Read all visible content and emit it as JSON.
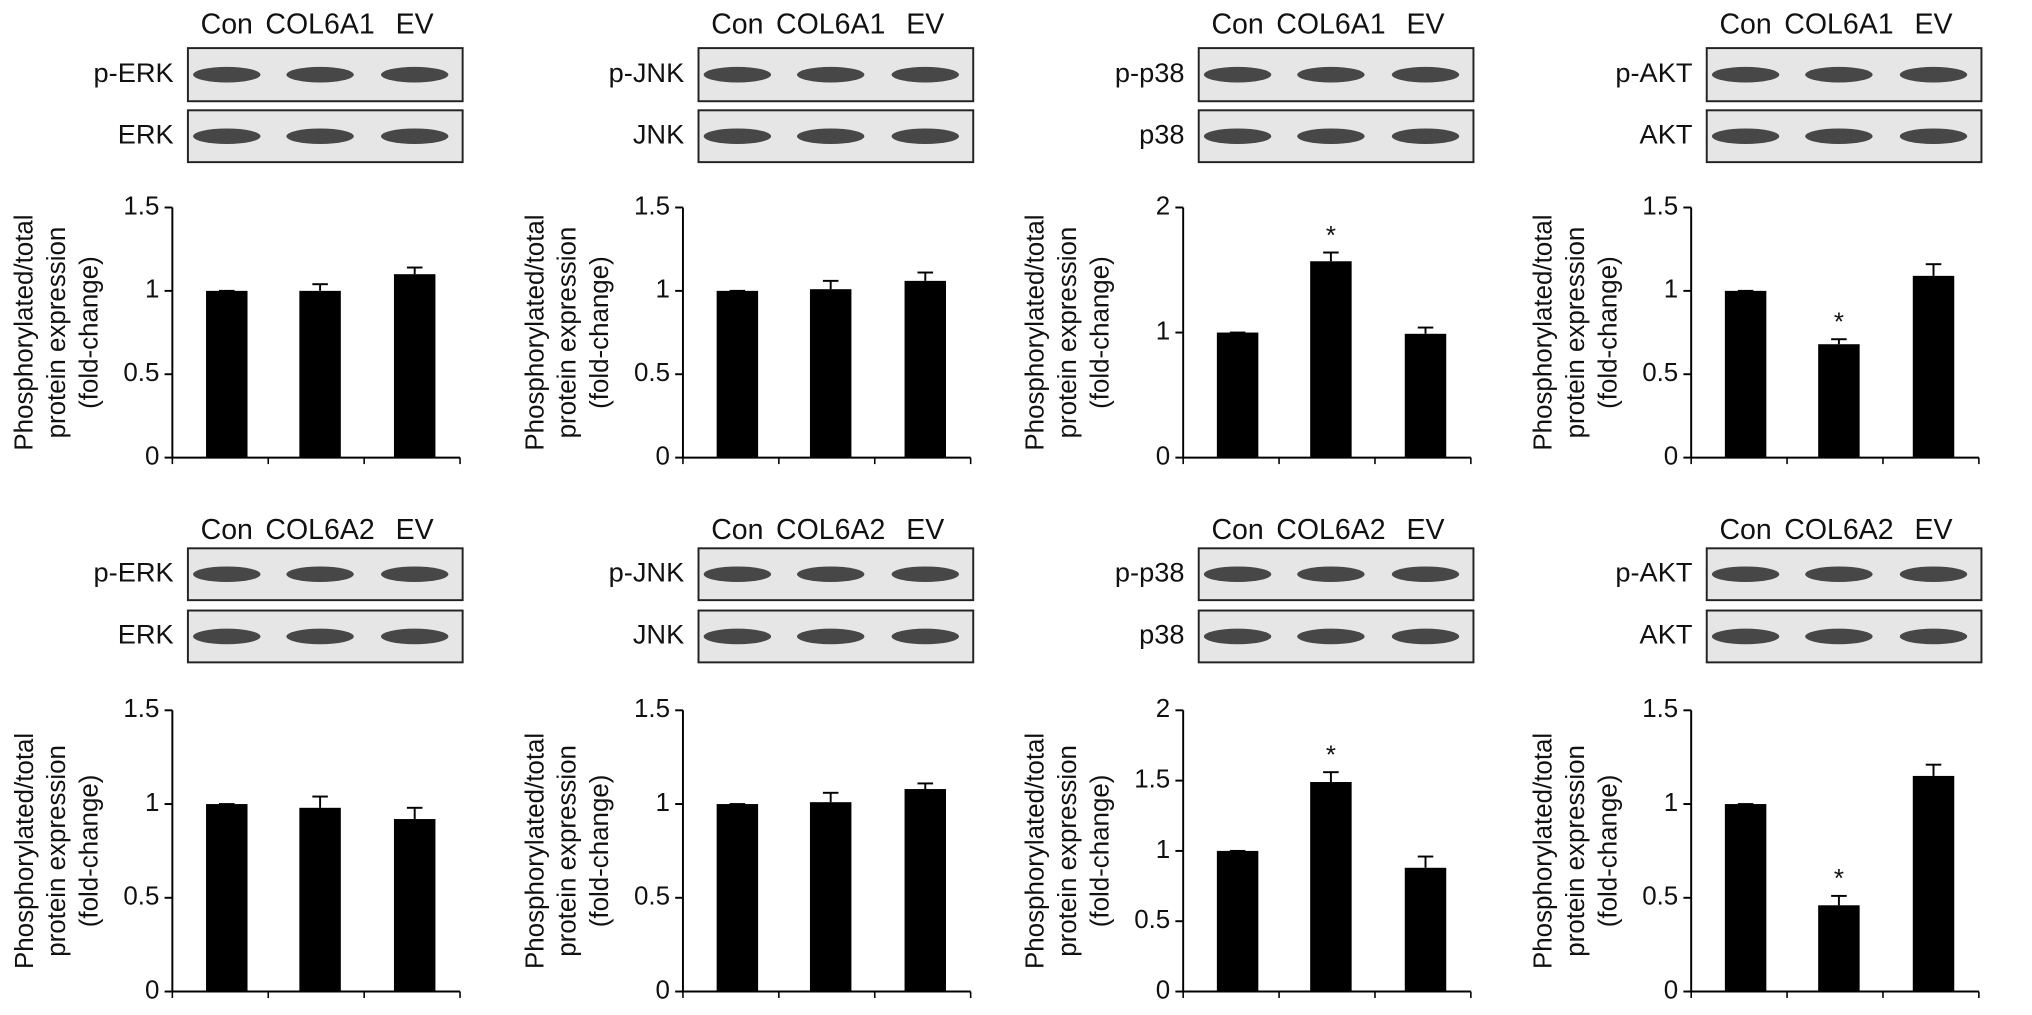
{
  "chart_data": [
    {
      "type": "bar",
      "categories": [
        "Con",
        "COL6A1",
        "EV"
      ],
      "blot_labels": [
        "p-ERK",
        "ERK"
      ],
      "ylabel": [
        "Phosphorylated/total",
        "protein expression",
        "(fold-change)"
      ],
      "values": [
        1.0,
        1.0,
        1.1
      ],
      "errors": [
        0,
        0.04,
        0.04
      ],
      "significance": [
        null,
        null,
        null
      ],
      "color": "#000000",
      "ylim": [
        0,
        1.5
      ],
      "yticks": [
        0,
        0.5,
        1,
        1.5
      ]
    },
    {
      "type": "bar",
      "categories": [
        "Con",
        "COL6A1",
        "EV"
      ],
      "blot_labels": [
        "p-JNK",
        "JNK"
      ],
      "ylabel": [
        "Phosphorylated/total",
        "protein expression",
        "(fold-change)"
      ],
      "values": [
        1.0,
        1.01,
        1.06
      ],
      "errors": [
        0,
        0.05,
        0.05
      ],
      "significance": [
        null,
        null,
        null
      ],
      "color": "#000000",
      "ylim": [
        0,
        1.5
      ],
      "yticks": [
        0,
        0.5,
        1,
        1.5
      ]
    },
    {
      "type": "bar",
      "categories": [
        "Con",
        "COL6A1",
        "EV"
      ],
      "blot_labels": [
        "p-p38",
        "p38"
      ],
      "ylabel": [
        "Phosphorylated/total",
        "protein expression",
        "(fold-change)"
      ],
      "values": [
        1.0,
        1.57,
        0.99
      ],
      "errors": [
        0,
        0.07,
        0.05
      ],
      "significance": [
        null,
        "*",
        null
      ],
      "color": "#000000",
      "ylim": [
        0,
        2
      ],
      "yticks": [
        0,
        1,
        2
      ]
    },
    {
      "type": "bar",
      "categories": [
        "Con",
        "COL6A1",
        "EV"
      ],
      "blot_labels": [
        "p-AKT",
        "AKT"
      ],
      "ylabel": [
        "Phosphorylated/total",
        "protein expression",
        "(fold-change)"
      ],
      "values": [
        1.0,
        0.68,
        1.09
      ],
      "errors": [
        0,
        0.03,
        0.07
      ],
      "significance": [
        null,
        "*",
        null
      ],
      "color": "#000000",
      "ylim": [
        0,
        1.5
      ],
      "yticks": [
        0,
        0.5,
        1,
        1.5
      ]
    },
    {
      "type": "bar",
      "categories": [
        "Con",
        "COL6A2",
        "EV"
      ],
      "blot_labels": [
        "p-ERK",
        "ERK"
      ],
      "ylabel": [
        "Phosphorylated/total",
        "protein expression",
        "(fold-change)"
      ],
      "values": [
        1.0,
        0.98,
        0.92
      ],
      "errors": [
        0,
        0.06,
        0.06
      ],
      "significance": [
        null,
        null,
        null
      ],
      "color": "#000000",
      "ylim": [
        0,
        1.5
      ],
      "yticks": [
        0,
        0.5,
        1,
        1.5
      ]
    },
    {
      "type": "bar",
      "categories": [
        "Con",
        "COL6A2",
        "EV"
      ],
      "blot_labels": [
        "p-JNK",
        "JNK"
      ],
      "ylabel": [
        "Phosphorylated/total",
        "protein expression",
        "(fold-change)"
      ],
      "values": [
        1.0,
        1.01,
        1.08
      ],
      "errors": [
        0,
        0.05,
        0.03
      ],
      "significance": [
        null,
        null,
        null
      ],
      "color": "#000000",
      "ylim": [
        0,
        1.5
      ],
      "yticks": [
        0,
        0.5,
        1,
        1.5
      ]
    },
    {
      "type": "bar",
      "categories": [
        "Con",
        "COL6A2",
        "EV"
      ],
      "blot_labels": [
        "p-p38",
        "p38"
      ],
      "ylabel": [
        "Phosphorylated/total",
        "protein expression",
        "(fold-change)"
      ],
      "values": [
        1.0,
        1.49,
        0.88
      ],
      "errors": [
        0,
        0.07,
        0.08
      ],
      "significance": [
        null,
        "*",
        null
      ],
      "color": "#000000",
      "ylim": [
        0,
        2
      ],
      "yticks": [
        0,
        0.5,
        1,
        1.5,
        2
      ]
    },
    {
      "type": "bar",
      "categories": [
        "Con",
        "COL6A2",
        "EV"
      ],
      "blot_labels": [
        "p-AKT",
        "AKT"
      ],
      "ylabel": [
        "Phosphorylated/total",
        "protein expression",
        "(fold-change)"
      ],
      "values": [
        1.0,
        0.46,
        1.15
      ],
      "errors": [
        0,
        0.05,
        0.06
      ],
      "significance": [
        null,
        "*",
        null
      ],
      "color": "#000000",
      "ylim": [
        0,
        1.5
      ],
      "yticks": [
        0,
        0.5,
        1,
        1.5
      ]
    }
  ]
}
